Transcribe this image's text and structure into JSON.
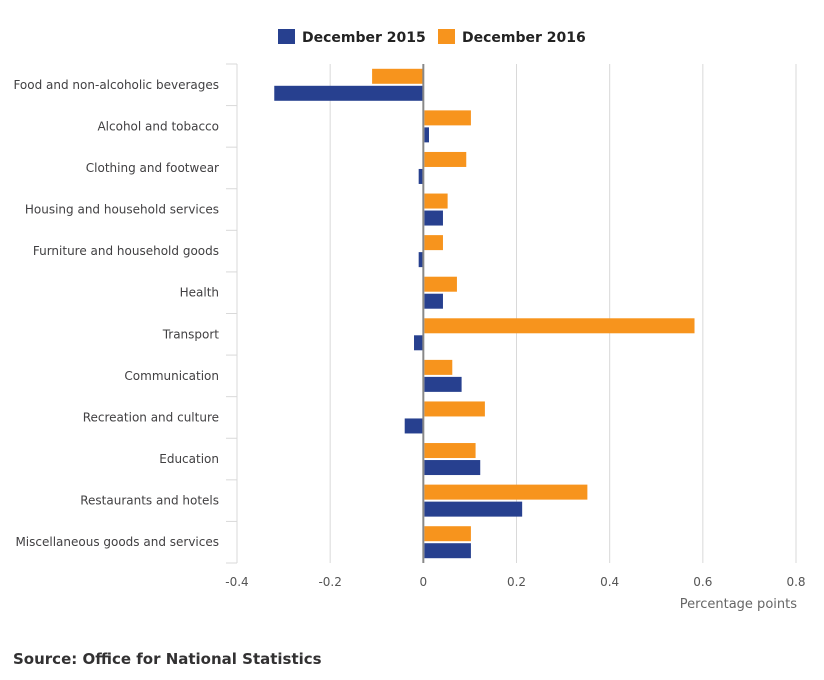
{
  "chart_data": {
    "type": "bar",
    "orientation": "horizontal",
    "title": "",
    "xlabel": "Percentage points",
    "ylabel": "",
    "xlim": [
      -0.4,
      0.8
    ],
    "xticks": [
      -0.4,
      -0.2,
      0,
      0.2,
      0.4,
      0.6,
      0.8
    ],
    "xtick_labels": [
      "-0.4",
      "-0.2",
      "0",
      "0.2",
      "0.4",
      "0.6",
      "0.8"
    ],
    "grid": true,
    "legend_position": "top",
    "categories": [
      "Food and non-alcoholic beverages",
      "Alcohol and tobacco",
      "Clothing and footwear",
      "Housing and household services",
      "Furniture and household goods",
      "Health",
      "Transport",
      "Communication",
      "Recreation and culture",
      "Education",
      "Restaurants and hotels",
      "Miscellaneous goods and services"
    ],
    "series": [
      {
        "name": "December 2015",
        "color": "#27408f",
        "values": [
          -0.32,
          0.01,
          -0.01,
          0.04,
          -0.01,
          0.04,
          -0.02,
          0.08,
          -0.04,
          0.12,
          0.21,
          0.1
        ]
      },
      {
        "name": "December 2016",
        "color": "#f7941d",
        "values": [
          -0.11,
          0.1,
          0.09,
          0.05,
          0.04,
          0.07,
          0.58,
          0.06,
          0.13,
          0.11,
          0.35,
          0.1
        ]
      }
    ]
  },
  "source": "Source: Office for National Statistics"
}
